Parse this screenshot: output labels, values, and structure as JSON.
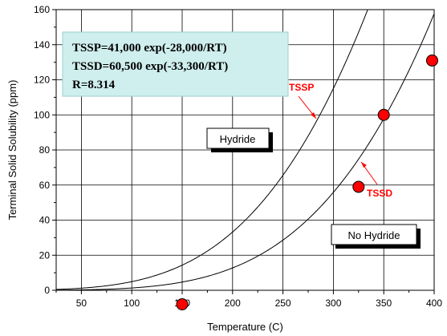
{
  "chart_data": {
    "type": "scatter",
    "title": "",
    "xlabel": "Temperature (C)",
    "ylabel": "Terminal Solid Solubility (ppm)",
    "xlim": [
      25,
      400
    ],
    "ylim": [
      0,
      160
    ],
    "x_ticks": [
      50,
      100,
      150,
      200,
      250,
      300,
      350,
      400
    ],
    "y_ticks": [
      0,
      20,
      40,
      60,
      80,
      100,
      120,
      140,
      160
    ],
    "grid": true,
    "equations": {
      "line1": "TSSP=41,000 exp(-28,000/RT)",
      "line2": "TSSD=60,500 exp(-33,300/RT)",
      "line3": "R=8.314"
    },
    "series": [
      {
        "name": "TSSP",
        "type": "line",
        "A": 41000,
        "Q": 28000,
        "color": "#000000"
      },
      {
        "name": "TSSD",
        "type": "line",
        "A": 60500,
        "Q": 33300,
        "color": "#000000"
      }
    ],
    "points": [
      {
        "x": 150,
        "y": -8
      },
      {
        "x": 325,
        "y": 59
      },
      {
        "x": 350,
        "y": 100
      },
      {
        "x": 398,
        "y": 131
      }
    ],
    "point_color": "#ff0000",
    "region_labels": {
      "hydride": "Hydride",
      "no_hydride": "No Hydride"
    },
    "curve_labels": {
      "tssp": "TSSP",
      "tssd": "TSSD"
    }
  }
}
